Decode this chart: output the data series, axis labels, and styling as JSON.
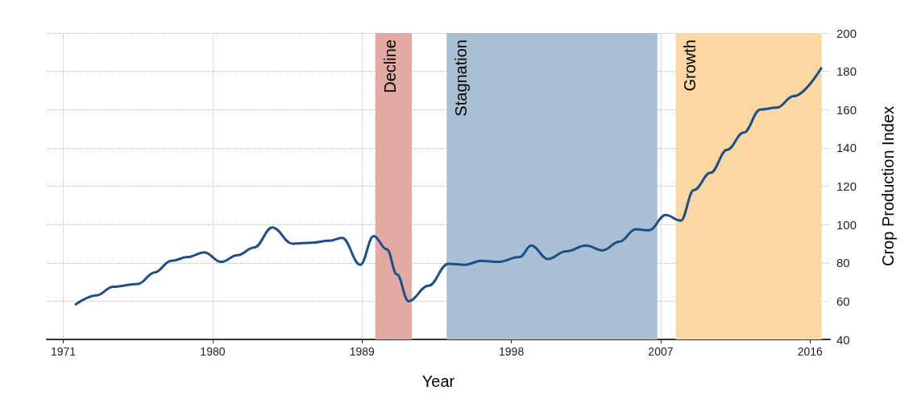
{
  "chart_data": {
    "type": "line",
    "xlabel": "Year",
    "ylabel": "Crop Production Index",
    "x": [
      1971.7,
      1973,
      1974,
      1975.5,
      1976.5,
      1977.5,
      1978.5,
      1979.5,
      1980.5,
      1981.5,
      1982.5,
      1983.6,
      1984.8,
      1986,
      1987,
      1987.8,
      1988.9,
      1989.7,
      1990.5,
      1991.1,
      1991.8,
      1993,
      1994.2,
      1995.2,
      1996.2,
      1997.2,
      1998.5,
      1999.2,
      2000.2,
      2001.3,
      2002.5,
      2003.5,
      2004.5,
      2005.5,
      2006.3,
      2007.3,
      2008.2,
      2009,
      2010,
      2011,
      2012,
      2013,
      2014,
      2015,
      2016.7
    ],
    "series": [
      {
        "color": "#1d4f8a",
        "values": [
          58,
          63,
          67.5,
          69,
          75,
          81,
          83,
          85.5,
          80.5,
          84,
          88,
          98.5,
          90,
          90.5,
          91.5,
          93,
          79,
          94,
          87,
          74,
          60,
          68,
          79.5,
          79,
          81,
          80.5,
          83,
          89,
          82,
          86,
          89,
          86.5,
          91,
          97.5,
          97,
          105,
          102,
          118,
          127,
          139,
          148,
          160,
          161,
          167,
          182
        ]
      }
    ],
    "xlim": [
      1970,
      2017.2
    ],
    "xticks": [
      1971,
      1980,
      1989,
      1998,
      2007,
      2016
    ],
    "ylim": [
      40,
      200
    ],
    "yticks": [
      40,
      60,
      80,
      100,
      120,
      140,
      160,
      180,
      200
    ],
    "bands": [
      {
        "axis": "x",
        "from": 1989.8,
        "to": 1992,
        "label": "Decline",
        "color": "#e3aaa4"
      },
      {
        "axis": "x",
        "from": 1994.1,
        "to": 2006.8,
        "label": "Stagnation",
        "color": "#a9c0d4"
      },
      {
        "axis": "x",
        "from": 2007.9,
        "to": 2016.7,
        "label": "Growth",
        "color": "#fad7a3"
      }
    ],
    "grid": true,
    "marker": "none",
    "line_style": "solid"
  }
}
